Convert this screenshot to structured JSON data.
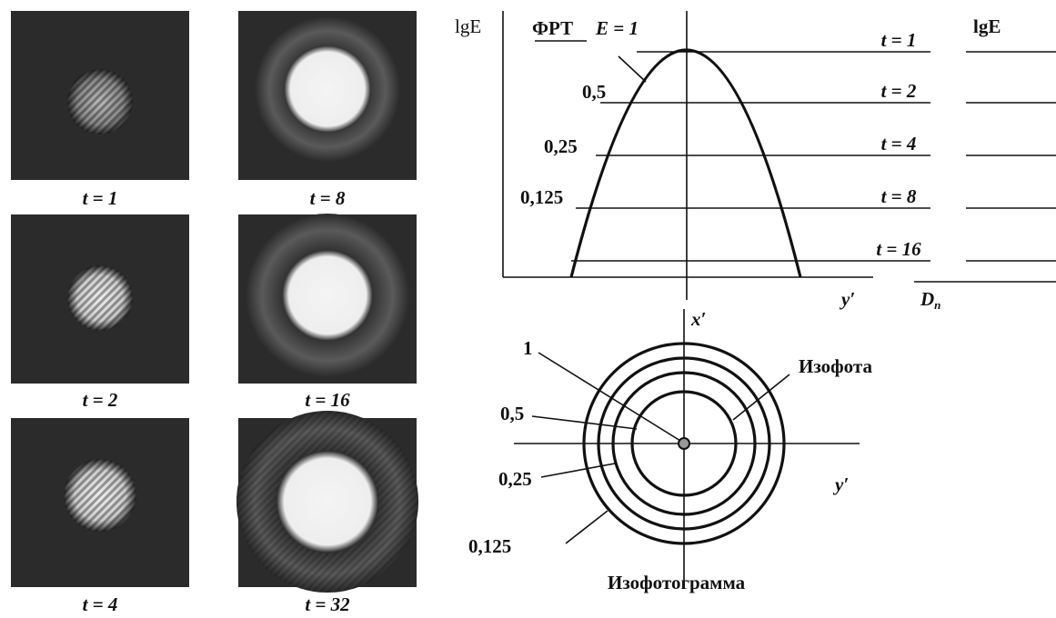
{
  "images": [
    {
      "caption": "t = 1"
    },
    {
      "caption": "t = 8"
    },
    {
      "caption": "t = 2"
    },
    {
      "caption": "t = 16"
    },
    {
      "caption": "t = 4"
    },
    {
      "caption": "t = 32"
    }
  ],
  "profile": {
    "y_axis_label": "lgE",
    "psf_label": "ФРТ",
    "peak_label": "E = 1",
    "level_labels": [
      "0,5",
      "0,25",
      "0,125"
    ],
    "time_labels": [
      "t = 1",
      "t = 2",
      "t = 4",
      "t = 8",
      "t = 16"
    ],
    "x_axis_label": "y′",
    "right_axis_label": "lgE",
    "right_x_label": {
      "main": "D",
      "sub": "п"
    }
  },
  "isophotogram": {
    "x_axis_label": "x′",
    "y_axis_label": "y′",
    "ring_labels": [
      "1",
      "0,5",
      "0,25",
      "0,125"
    ],
    "isophote_label": "Изофота",
    "title": "Изофотограмма"
  }
}
